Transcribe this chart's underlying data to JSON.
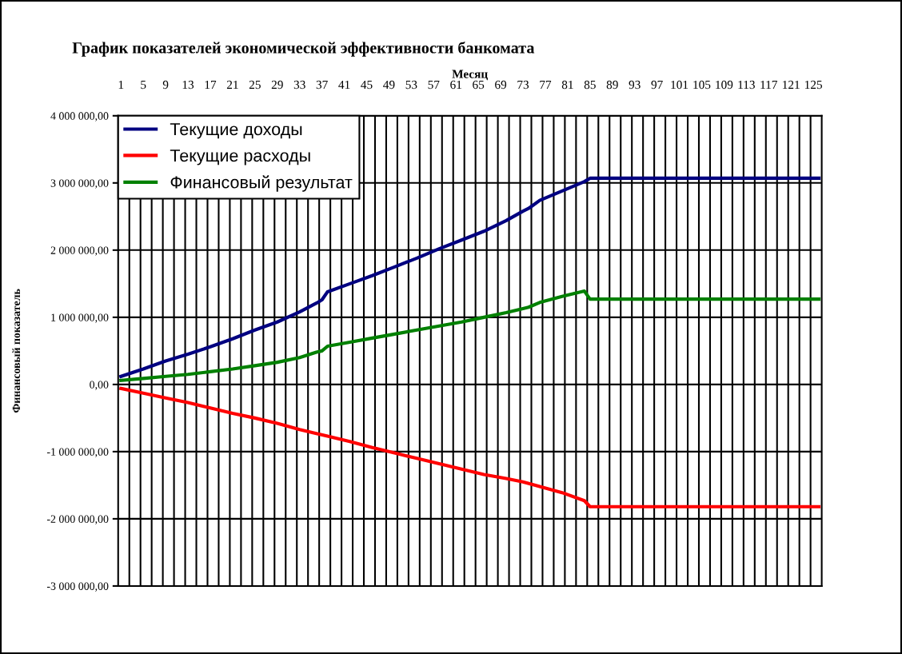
{
  "chart_data": {
    "type": "line",
    "title": "График показателей экономической эффективности банкомата",
    "xlabel": "Месяц",
    "ylabel": "Финансовый показатель",
    "xlim": [
      0.5,
      126.5
    ],
    "xticks": [
      1,
      5,
      9,
      13,
      17,
      21,
      25,
      29,
      33,
      37,
      41,
      45,
      49,
      53,
      57,
      61,
      65,
      69,
      73,
      77,
      81,
      85,
      89,
      93,
      97,
      101,
      105,
      109,
      113,
      117,
      121,
      125,
      {
        "value": 2.5,
        "label": null
      },
      {
        "value": 4.5,
        "label": null
      },
      {
        "value": 6.5,
        "label": null
      },
      {
        "value": 8.5,
        "label": null
      },
      {
        "value": 10.5,
        "label": null
      },
      {
        "value": 12.5,
        "label": null
      },
      {
        "value": 14.5,
        "label": null
      },
      {
        "value": 16.5,
        "label": null
      },
      {
        "value": 18.5,
        "label": null
      },
      {
        "value": 20.5,
        "label": null
      },
      {
        "value": 22.5,
        "label": null
      },
      {
        "value": 24.5,
        "label": null
      },
      {
        "value": 26.5,
        "label": null
      },
      {
        "value": 28.5,
        "label": null
      },
      {
        "value": 30.5,
        "label": null
      },
      {
        "value": 32.5,
        "label": null
      },
      {
        "value": 34.5,
        "label": null
      },
      {
        "value": 36.5,
        "label": null
      },
      {
        "value": 38.5,
        "label": null
      },
      {
        "value": 40.5,
        "label": null
      },
      {
        "value": 42.5,
        "label": null
      },
      {
        "value": 44.5,
        "label": null
      },
      {
        "value": 46.5,
        "label": null
      },
      {
        "value": 48.5,
        "label": null
      },
      {
        "value": 50.5,
        "label": null
      },
      {
        "value": 52.5,
        "label": null
      },
      {
        "value": 54.5,
        "label": null
      },
      {
        "value": 56.5,
        "label": null
      },
      {
        "value": 58.5,
        "label": null
      },
      {
        "value": 60.5,
        "label": null
      },
      {
        "value": 62.5,
        "label": null
      },
      {
        "value": 64.5,
        "label": null
      },
      {
        "value": 66.5,
        "label": null
      },
      {
        "value": 68.5,
        "label": null
      },
      {
        "value": 70.5,
        "label": null
      },
      {
        "value": 72.5,
        "label": null
      },
      {
        "value": 74.5,
        "label": null
      },
      {
        "value": 76.5,
        "label": null
      },
      {
        "value": 78.5,
        "label": null
      },
      {
        "value": 80.5,
        "label": null
      },
      {
        "value": 82.5,
        "label": null
      },
      {
        "value": 84.5,
        "label": null
      },
      {
        "value": 86.5,
        "label": null
      },
      {
        "value": 88.5,
        "label": null
      },
      {
        "value": 90.5,
        "label": null
      },
      {
        "value": 92.5,
        "label": null
      },
      {
        "value": 94.5,
        "label": null
      },
      {
        "value": 96.5,
        "label": null
      },
      {
        "value": 98.5,
        "label": null
      },
      {
        "value": 100.5,
        "label": null
      },
      {
        "value": 102.5,
        "label": null
      },
      {
        "value": 104.5,
        "label": null
      },
      {
        "value": 106.5,
        "label": null
      },
      {
        "value": 108.5,
        "label": null
      },
      {
        "value": 110.5,
        "label": null
      },
      {
        "value": 112.5,
        "label": null
      },
      {
        "value": 114.5,
        "label": null
      },
      {
        "value": 116.5,
        "label": null
      },
      {
        "value": 118.5,
        "label": null
      },
      {
        "value": 120.5,
        "label": null
      },
      {
        "value": 122.5,
        "label": null
      },
      {
        "value": 124.5,
        "label": null
      }
    ],
    "ylim": [
      -3000000,
      4000000
    ],
    "yticks": [
      {
        "value": -3000000,
        "label": "-3 000 000,00"
      },
      {
        "value": -2000000,
        "label": "-2 000 000,00"
      },
      {
        "value": -1000000,
        "label": "-1 000 000,00"
      },
      {
        "value": 0,
        "label": "0,00"
      },
      {
        "value": 1000000,
        "label": "1 000 000,00"
      },
      {
        "value": 2000000,
        "label": "2 000 000,00"
      },
      {
        "value": 3000000,
        "label": "3 000 000,00"
      },
      {
        "value": 4000000,
        "label": "4 000 000,00"
      }
    ],
    "grid": true,
    "legend": "top left",
    "marker": "none",
    "line_style": "solid",
    "series": [
      {
        "name": "Текущие доходы",
        "color": "#000080",
        "x": [
          1,
          5,
          9,
          13,
          17,
          21,
          25,
          29,
          33,
          36,
          37,
          38,
          42,
          46,
          50,
          54,
          58,
          62,
          66,
          70,
          73,
          74,
          76,
          80,
          84,
          85,
          126
        ],
        "values": [
          120000,
          230000,
          350000,
          450000,
          560000,
          680000,
          810000,
          930000,
          1080000,
          1210000,
          1260000,
          1380000,
          1500000,
          1620000,
          1750000,
          1880000,
          2020000,
          2150000,
          2280000,
          2440000,
          2580000,
          2620000,
          2740000,
          2880000,
          3020000,
          3070000,
          3070000
        ]
      },
      {
        "name": "Текущие расходы",
        "color": "#ff0000",
        "x": [
          1,
          5,
          9,
          13,
          17,
          21,
          25,
          29,
          33,
          36,
          38,
          42,
          46,
          50,
          54,
          58,
          62,
          66,
          70,
          73,
          76,
          80,
          84,
          85,
          126
        ],
        "values": [
          -60000,
          -130000,
          -200000,
          -270000,
          -350000,
          -430000,
          -500000,
          -580000,
          -670000,
          -730000,
          -770000,
          -850000,
          -940000,
          -1020000,
          -1100000,
          -1180000,
          -1260000,
          -1340000,
          -1400000,
          -1450000,
          -1520000,
          -1610000,
          -1730000,
          -1820000,
          -1820000
        ]
      },
      {
        "name": "Финансовый результат",
        "color": "#008000",
        "x": [
          1,
          5,
          9,
          13,
          17,
          21,
          25,
          29,
          33,
          36,
          37,
          38,
          42,
          46,
          50,
          54,
          58,
          62,
          66,
          70,
          73,
          74,
          76,
          80,
          84,
          85,
          126
        ],
        "values": [
          60000,
          90000,
          120000,
          150000,
          190000,
          230000,
          280000,
          330000,
          400000,
          480000,
          500000,
          570000,
          630000,
          690000,
          750000,
          810000,
          870000,
          930000,
          1000000,
          1070000,
          1130000,
          1150000,
          1220000,
          1310000,
          1390000,
          1270000,
          1270000
        ]
      }
    ]
  }
}
